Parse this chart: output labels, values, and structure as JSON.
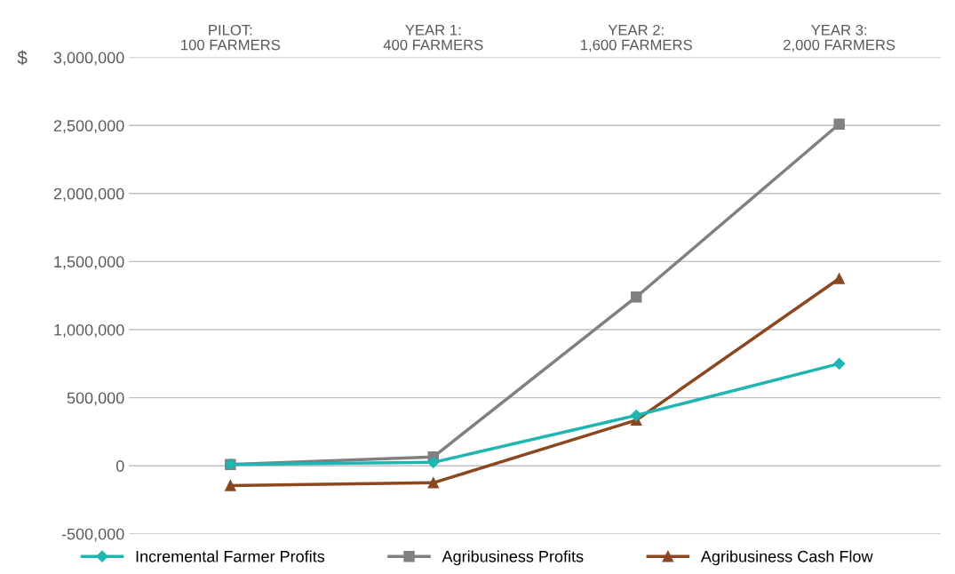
{
  "chart_data": {
    "type": "line",
    "ylabel": "$",
    "categories": [
      "PILOT:\n100 FARMERS",
      "YEAR 1:\n400 FARMERS",
      "YEAR 2:\n1,600 FARMERS",
      "YEAR 3:\n2,000 FARMERS"
    ],
    "series": [
      {
        "name": "Incremental Farmer Profits",
        "color": "#1fb5b0",
        "marker": "diamond",
        "values": [
          10000,
          25000,
          370000,
          750000
        ]
      },
      {
        "name": "Agribusiness Profits",
        "color": "#808080",
        "marker": "square",
        "values": [
          10000,
          65000,
          1240000,
          2510000
        ]
      },
      {
        "name": "Agribusiness Cash Flow",
        "color": "#8b4720",
        "marker": "triangle",
        "values": [
          -145000,
          -125000,
          335000,
          1375000
        ]
      }
    ],
    "ylim": [
      -500000,
      3000000
    ],
    "yticks": [
      {
        "value": -500000,
        "label": "-500,000"
      },
      {
        "value": 0,
        "label": "0"
      },
      {
        "value": 500000,
        "label": "500,000"
      },
      {
        "value": 1000000,
        "label": "1,000,000"
      },
      {
        "value": 1500000,
        "label": "1,500,000"
      },
      {
        "value": 2000000,
        "label": "2,000,000"
      },
      {
        "value": 2500000,
        "label": "2,500,000"
      },
      {
        "value": 3000000,
        "label": "3,000,000"
      }
    ],
    "grid": "y",
    "legend": "bottom"
  }
}
